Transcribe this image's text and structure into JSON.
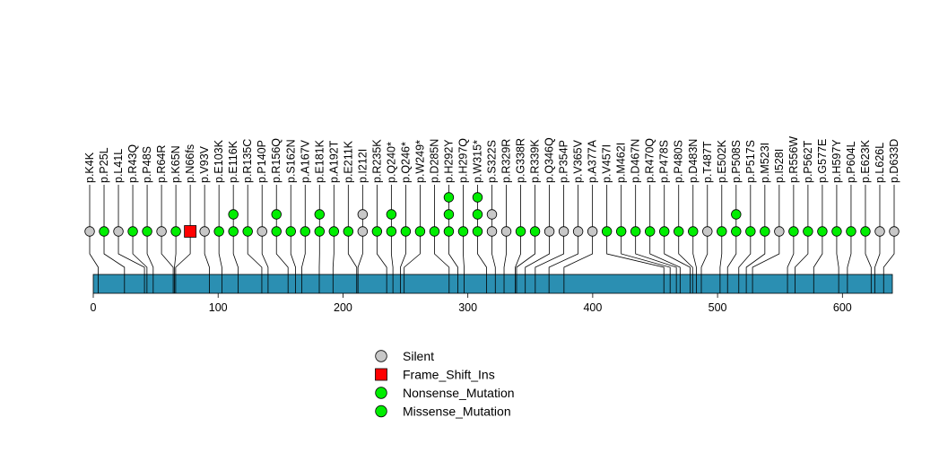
{
  "chart_data": {
    "type": "lollipop",
    "title": "",
    "xlabel": "",
    "ylabel": "",
    "xlim": [
      0,
      640
    ],
    "x_ticks": [
      0,
      100,
      200,
      300,
      400,
      500,
      600
    ],
    "protein_length": 640,
    "colors": {
      "Silent": "#c8c8c8",
      "Frame_Shift_Ins": "#ff0000",
      "Nonsense_Mutation": "#00ee00",
      "Missense_Mutation": "#00ee00",
      "domain": "#2b8fb2",
      "domain_line": "#000000"
    },
    "legend": [
      {
        "label": "Silent",
        "type": "Silent",
        "shape": "circle"
      },
      {
        "label": "Frame_Shift_Ins",
        "type": "Frame_Shift_Ins",
        "shape": "square"
      },
      {
        "label": "Nonsense_Mutation",
        "type": "Nonsense_Mutation",
        "shape": "circle"
      },
      {
        "label": "Missense_Mutation",
        "type": "Missense_Mutation",
        "shape": "circle"
      }
    ],
    "mutations": [
      {
        "label": "p.K4K",
        "pos": 4,
        "type": "Silent",
        "count": 1
      },
      {
        "label": "p.P25L",
        "pos": 25,
        "type": "Missense_Mutation",
        "count": 1
      },
      {
        "label": "p.L41L",
        "pos": 41,
        "type": "Silent",
        "count": 1
      },
      {
        "label": "p.R43Q",
        "pos": 43,
        "type": "Missense_Mutation",
        "count": 1
      },
      {
        "label": "p.P48S",
        "pos": 48,
        "type": "Missense_Mutation",
        "count": 1
      },
      {
        "label": "p.R64R",
        "pos": 64,
        "type": "Silent",
        "count": 1
      },
      {
        "label": "p.K65N",
        "pos": 65,
        "type": "Missense_Mutation",
        "count": 1
      },
      {
        "label": "p.N66fs",
        "pos": 66,
        "type": "Frame_Shift_Ins",
        "count": 1
      },
      {
        "label": "p.V93V",
        "pos": 93,
        "type": "Silent",
        "count": 1
      },
      {
        "label": "p.E103K",
        "pos": 103,
        "type": "Missense_Mutation",
        "count": 1
      },
      {
        "label": "p.E116K",
        "pos": 116,
        "type": "Missense_Mutation",
        "count": 2
      },
      {
        "label": "p.R135C",
        "pos": 135,
        "type": "Missense_Mutation",
        "count": 1
      },
      {
        "label": "p.P140P",
        "pos": 140,
        "type": "Silent",
        "count": 1
      },
      {
        "label": "p.R156Q",
        "pos": 156,
        "type": "Missense_Mutation",
        "count": 2
      },
      {
        "label": "p.S162N",
        "pos": 162,
        "type": "Missense_Mutation",
        "count": 1
      },
      {
        "label": "p.A167V",
        "pos": 167,
        "type": "Missense_Mutation",
        "count": 1
      },
      {
        "label": "p.E181K",
        "pos": 181,
        "type": "Missense_Mutation",
        "count": 2
      },
      {
        "label": "p.A192T",
        "pos": 192,
        "type": "Missense_Mutation",
        "count": 1
      },
      {
        "label": "p.E211K",
        "pos": 211,
        "type": "Missense_Mutation",
        "count": 1
      },
      {
        "label": "p.I212I",
        "pos": 212,
        "type": "Silent",
        "count": 2
      },
      {
        "label": "p.R235K",
        "pos": 235,
        "type": "Missense_Mutation",
        "count": 1
      },
      {
        "label": "p.Q240*",
        "pos": 240,
        "type": "Nonsense_Mutation",
        "count": 2
      },
      {
        "label": "p.Q246*",
        "pos": 246,
        "type": "Nonsense_Mutation",
        "count": 1
      },
      {
        "label": "p.W249*",
        "pos": 249,
        "type": "Nonsense_Mutation",
        "count": 1
      },
      {
        "label": "p.D285N",
        "pos": 285,
        "type": "Missense_Mutation",
        "count": 1
      },
      {
        "label": "p.H292Y",
        "pos": 292,
        "type": "Missense_Mutation",
        "count": 3
      },
      {
        "label": "p.H297Q",
        "pos": 297,
        "type": "Missense_Mutation",
        "count": 1
      },
      {
        "label": "p.W315*",
        "pos": 315,
        "type": "Nonsense_Mutation",
        "count": 3
      },
      {
        "label": "p.S322S",
        "pos": 322,
        "type": "Silent",
        "count": 2
      },
      {
        "label": "p.R329R",
        "pos": 329,
        "type": "Silent",
        "count": 1
      },
      {
        "label": "p.G338R",
        "pos": 338,
        "type": "Missense_Mutation",
        "count": 1
      },
      {
        "label": "p.R339K",
        "pos": 339,
        "type": "Missense_Mutation",
        "count": 1
      },
      {
        "label": "p.Q346Q",
        "pos": 346,
        "type": "Silent",
        "count": 1
      },
      {
        "label": "p.P354P",
        "pos": 354,
        "type": "Silent",
        "count": 1
      },
      {
        "label": "p.V365V",
        "pos": 365,
        "type": "Silent",
        "count": 1
      },
      {
        "label": "p.A377A",
        "pos": 377,
        "type": "Silent",
        "count": 1
      },
      {
        "label": "p.V457I",
        "pos": 457,
        "type": "Missense_Mutation",
        "count": 1
      },
      {
        "label": "p.M462I",
        "pos": 462,
        "type": "Missense_Mutation",
        "count": 1
      },
      {
        "label": "p.D467N",
        "pos": 467,
        "type": "Missense_Mutation",
        "count": 1
      },
      {
        "label": "p.R470Q",
        "pos": 470,
        "type": "Missense_Mutation",
        "count": 1
      },
      {
        "label": "p.P478S",
        "pos": 478,
        "type": "Missense_Mutation",
        "count": 1
      },
      {
        "label": "p.P480S",
        "pos": 480,
        "type": "Missense_Mutation",
        "count": 1
      },
      {
        "label": "p.D483N",
        "pos": 483,
        "type": "Missense_Mutation",
        "count": 1
      },
      {
        "label": "p.T487T",
        "pos": 487,
        "type": "Silent",
        "count": 1
      },
      {
        "label": "p.E502K",
        "pos": 502,
        "type": "Missense_Mutation",
        "count": 1
      },
      {
        "label": "p.P508S",
        "pos": 508,
        "type": "Missense_Mutation",
        "count": 2
      },
      {
        "label": "p.P517S",
        "pos": 517,
        "type": "Missense_Mutation",
        "count": 1
      },
      {
        "label": "p.M523I",
        "pos": 523,
        "type": "Missense_Mutation",
        "count": 1
      },
      {
        "label": "p.I528I",
        "pos": 528,
        "type": "Silent",
        "count": 1
      },
      {
        "label": "p.R556W",
        "pos": 556,
        "type": "Missense_Mutation",
        "count": 1
      },
      {
        "label": "p.P562T",
        "pos": 562,
        "type": "Missense_Mutation",
        "count": 1
      },
      {
        "label": "p.G577E",
        "pos": 577,
        "type": "Missense_Mutation",
        "count": 1
      },
      {
        "label": "p.H597Y",
        "pos": 597,
        "type": "Missense_Mutation",
        "count": 1
      },
      {
        "label": "p.P604L",
        "pos": 604,
        "type": "Missense_Mutation",
        "count": 1
      },
      {
        "label": "p.E623K",
        "pos": 623,
        "type": "Missense_Mutation",
        "count": 1
      },
      {
        "label": "p.L626L",
        "pos": 626,
        "type": "Silent",
        "count": 1
      },
      {
        "label": "p.D633D",
        "pos": 633,
        "type": "Silent",
        "count": 1
      }
    ]
  }
}
